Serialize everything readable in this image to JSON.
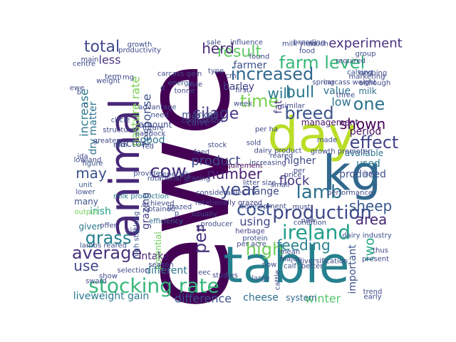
{
  "word_cloud": {
    "words": [
      {
        "text": "ewe",
        "color": "#440154"
      },
      {
        "text": "table",
        "color": "#26818e"
      },
      {
        "text": "kg",
        "color": "#31688e"
      },
      {
        "text": "day",
        "color": "#bade28"
      },
      {
        "text": "animal",
        "color": "#482878"
      },
      {
        "text": "stocking rate",
        "color": "#35b779"
      },
      {
        "text": "production",
        "color": "#3e4989"
      },
      {
        "text": "ireland",
        "color": "#1f9e89"
      },
      {
        "text": "farm level",
        "color": "#35b779"
      },
      {
        "text": "lamb",
        "color": "#2d708e"
      },
      {
        "text": "breed",
        "color": "#3b528b"
      },
      {
        "text": "increased",
        "color": "#31688e"
      },
      {
        "text": "bull",
        "color": "#2a788e"
      },
      {
        "text": "grass",
        "color": "#26828e"
      },
      {
        "text": "high",
        "color": "#6ece58"
      },
      {
        "text": "average",
        "color": "#46327e"
      },
      {
        "text": "cow",
        "color": "#472d7b"
      },
      {
        "text": "one",
        "color": "#2c728e"
      },
      {
        "text": "effect",
        "color": "#414487"
      },
      {
        "text": "year",
        "color": "#3e4a89"
      },
      {
        "text": "cost",
        "color": "#3b528b"
      },
      {
        "text": "result",
        "color": "#5ec962"
      },
      {
        "text": "pasture rate",
        "color": "#7ad151"
      },
      {
        "text": "response",
        "color": "#3b528b"
      },
      {
        "text": "silage",
        "color": "#443983"
      },
      {
        "text": "number",
        "color": "#482173"
      },
      {
        "text": "time",
        "color": "#7ad151"
      },
      {
        "text": "will",
        "color": "#2a788e"
      },
      {
        "text": "total",
        "color": "#3f4788"
      },
      {
        "text": "increase",
        "color": "#2a788e"
      },
      {
        "text": "experiment",
        "color": "#472f7d"
      },
      {
        "text": "herd",
        "color": "#472c7a"
      },
      {
        "text": "shown",
        "color": "#440154"
      },
      {
        "text": "flock",
        "color": "#46337e"
      },
      {
        "text": "grazing",
        "color": "#433e85"
      },
      {
        "text": "sheep",
        "color": "#38588c"
      },
      {
        "text": "product",
        "color": "#3e4989"
      },
      {
        "text": "area",
        "color": "#482677"
      },
      {
        "text": "using",
        "color": "#404688"
      },
      {
        "text": "feeding",
        "color": "#27808e"
      },
      {
        "text": "use",
        "color": "#3f4788"
      },
      {
        "text": "may",
        "color": "#3b528b"
      },
      {
        "text": "two",
        "color": "#22a785"
      },
      {
        "text": "difference",
        "color": "#3b528b"
      },
      {
        "text": "cheese",
        "color": "#2c728e"
      },
      {
        "text": "winter",
        "color": "#54c568"
      },
      {
        "text": "liveweight gain",
        "color": "#2a788e"
      },
      {
        "text": "different",
        "color": "#2c728e"
      },
      {
        "text": "intake",
        "color": "#482173"
      },
      {
        "text": "per",
        "color": "#46337e"
      },
      {
        "text": "n",
        "color": "#482878"
      },
      {
        "text": "fat",
        "color": "#46327e"
      },
      {
        "text": "low",
        "color": "#2c728e"
      },
      {
        "text": "value",
        "color": "#2d708e"
      },
      {
        "text": "milk",
        "color": "#2d708e"
      },
      {
        "text": "barley",
        "color": "#424086"
      },
      {
        "text": "farmer",
        "color": "#3b528b"
      },
      {
        "text": "period",
        "color": "#470e61"
      },
      {
        "text": "available",
        "color": "#2c728e"
      },
      {
        "text": "used",
        "color": "#2a788e"
      },
      {
        "text": "produced",
        "color": "#3b528b"
      },
      {
        "text": "higher",
        "color": "#3e4989"
      },
      {
        "text": "change",
        "color": "#3f4788"
      },
      {
        "text": "market",
        "color": "#3e4c8a"
      },
      {
        "text": "calve",
        "color": "#424086"
      },
      {
        "text": "good",
        "color": "#2c728e"
      },
      {
        "text": "factor",
        "color": "#3e4989"
      },
      {
        "text": "less",
        "color": "#46337e"
      },
      {
        "text": "amount",
        "color": "#3e4989"
      },
      {
        "text": "irish",
        "color": "#1fa188"
      },
      {
        "text": "dry matter",
        "color": "#2c728e"
      },
      {
        "text": "management",
        "color": "#471365"
      },
      {
        "text": "requirement",
        "color": "#440154"
      },
      {
        "text": "many",
        "color": "#3b528b"
      },
      {
        "text": "given",
        "color": "#2a788e"
      },
      {
        "text": "unit",
        "color": "#38588c"
      },
      {
        "text": "lower",
        "color": "#3e4c8a"
      },
      {
        "text": "efficiency",
        "color": "#31688e"
      },
      {
        "text": "milk production",
        "color": "#2a788e"
      },
      {
        "text": "lambs reared",
        "color": "#3b528b"
      },
      {
        "text": "high stocking",
        "color": "#3b528b"
      },
      {
        "text": "potential",
        "color": "#6ece58"
      },
      {
        "text": "herbage",
        "color": "#424086"
      },
      {
        "text": "system",
        "color": "#31688e"
      },
      {
        "text": "important",
        "color": "#3b528b"
      },
      {
        "text": "thus",
        "color": "#3e4989"
      },
      {
        "text": "protein",
        "color": "#3b528b"
      },
      {
        "text": "rotationally grazed",
        "color": "#424086"
      },
      {
        "text": "now",
        "color": "#3e4989"
      },
      {
        "text": "ram",
        "color": "#3b528b"
      },
      {
        "text": "figure",
        "color": "#3b528b"
      },
      {
        "text": "need",
        "color": "#3e4989"
      },
      {
        "text": "carcass gain",
        "color": "#3e4989"
      },
      {
        "text": "energy",
        "color": "#3b528b"
      },
      {
        "text": "type",
        "color": "#3b528b"
      },
      {
        "text": "lambing",
        "color": "#3e4989"
      },
      {
        "text": "calving",
        "color": "#3b528b"
      },
      {
        "text": "dairy industry",
        "color": "#3b528b"
      },
      {
        "text": "new",
        "color": "#3e4989"
      },
      {
        "text": "similar",
        "color": "#3e4989"
      },
      {
        "text": "small",
        "color": "#3e4989"
      },
      {
        "text": "must",
        "color": "#3e4989"
      },
      {
        "text": "mean",
        "color": "#3e4989"
      },
      {
        "text": "calf",
        "color": "#3b528b"
      },
      {
        "text": "large",
        "color": "#3b528b"
      },
      {
        "text": "studies",
        "color": "#3e4989"
      },
      {
        "text": "early",
        "color": "#3e4989"
      },
      {
        "text": "trend",
        "color": "#3e4989"
      },
      {
        "text": "advantage",
        "color": "#3e4989"
      },
      {
        "text": "comparison",
        "color": "#3b528b"
      },
      {
        "text": "future",
        "color": "#3e4989"
      },
      {
        "text": "paddock",
        "color": "#3e4989"
      },
      {
        "text": "fed",
        "color": "#3e4989"
      },
      {
        "text": "generally",
        "color": "#3b528b"
      },
      {
        "text": "provide",
        "color": "#3e4989"
      },
      {
        "text": "output",
        "color": "#6ece58"
      },
      {
        "text": "season",
        "color": "#3e4989"
      },
      {
        "text": "selection",
        "color": "#3e4989"
      },
      {
        "text": "growth",
        "color": "#3e4989"
      },
      {
        "text": "productivity",
        "color": "#3e4989"
      },
      {
        "text": "main",
        "color": "#3e4989"
      },
      {
        "text": "centre",
        "color": "#3e4989"
      },
      {
        "text": "weight",
        "color": "#3e4989"
      },
      {
        "text": "term",
        "color": "#3e4989"
      },
      {
        "text": "structure",
        "color": "#3e4989"
      },
      {
        "text": "greater",
        "color": "#3e4989"
      },
      {
        "text": "lowland",
        "color": "#3e4989"
      },
      {
        "text": "tonne",
        "color": "#3e4989"
      },
      {
        "text": "week",
        "color": "#3e4989"
      },
      {
        "text": "first",
        "color": "#3e4989"
      },
      {
        "text": "food",
        "color": "#3e4989"
      },
      {
        "text": "milk yield",
        "color": "#3e4989"
      },
      {
        "text": "breeding",
        "color": "#3e4989"
      },
      {
        "text": "group",
        "color": "#3e4989"
      },
      {
        "text": "required",
        "color": "#3e4989"
      },
      {
        "text": "carcass weight",
        "color": "#3e4989"
      },
      {
        "text": "spring",
        "color": "#3e4989"
      },
      {
        "text": "although",
        "color": "#3e4989"
      },
      {
        "text": "marketing",
        "color": "#3e4989"
      },
      {
        "text": "per ha",
        "color": "#3e4989"
      },
      {
        "text": "litter size",
        "color": "#3e4989"
      },
      {
        "text": "considerable",
        "color": "#3e4989"
      },
      {
        "text": "achieved",
        "color": "#3e4989"
      },
      {
        "text": "obtained",
        "color": "#3e4989"
      },
      {
        "text": "price",
        "color": "#3e4989"
      },
      {
        "text": "condition",
        "color": "#3e4989"
      },
      {
        "text": "performance",
        "color": "#3e4989"
      },
      {
        "text": "development",
        "color": "#3e4989"
      },
      {
        "text": "major",
        "color": "#3e4989"
      },
      {
        "text": "diversification",
        "color": "#3e4989"
      },
      {
        "text": "present",
        "color": "#3e4989"
      },
      {
        "text": "better",
        "color": "#3e4989"
      },
      {
        "text": "cattle",
        "color": "#3e4989"
      },
      {
        "text": "increasing",
        "color": "#3e4989"
      },
      {
        "text": "dairy product",
        "color": "#3e4989"
      },
      {
        "text": "made",
        "color": "#3e4989"
      },
      {
        "text": "growth promoter",
        "color": "#3e4989"
      },
      {
        "text": "three",
        "color": "#3e4989"
      },
      {
        "text": "much",
        "color": "#3e4989"
      },
      {
        "text": "sward",
        "color": "#3e4989"
      },
      {
        "text": "ida",
        "color": "#3e4989"
      },
      {
        "text": "sold",
        "color": "#3e4989"
      },
      {
        "text": "producer",
        "color": "#3e4989"
      },
      {
        "text": "rotational grazing",
        "color": "#3e4989"
      },
      {
        "text": "usually",
        "color": "#3e4989"
      },
      {
        "text": "show",
        "color": "#3e4989"
      },
      {
        "text": "offer",
        "color": "#3e4989"
      },
      {
        "text": "size",
        "color": "#3e4989"
      },
      {
        "text": "sale",
        "color": "#3e4989"
      },
      {
        "text": "influence",
        "color": "#3e4989"
      },
      {
        "text": "found",
        "color": "#3e4989"
      },
      {
        "text": "ha",
        "color": "#3e4989"
      },
      {
        "text": "eec",
        "color": "#3e4989"
      },
      {
        "text": "rate",
        "color": "#3e4989"
      },
      {
        "text": "circle",
        "color": "#3e4989"
      },
      {
        "text": "mg",
        "color": "#3e4989"
      },
      {
        "text": "per acre",
        "color": "#3e4989"
      },
      {
        "text": "grazed",
        "color": "#3e4989"
      },
      {
        "text": "reared",
        "color": "#3e4989"
      },
      {
        "text": "per",
        "color": "#3e4989"
      },
      {
        "text": "stock",
        "color": "#3e4989"
      },
      {
        "text": "feed",
        "color": "#3e4989"
      },
      {
        "text": "d",
        "color": "#3e4989"
      },
      {
        "text": "cm",
        "color": "#3e4989"
      },
      {
        "text": "b",
        "color": "#3e4989"
      },
      {
        "text": "c",
        "color": "#3e4989"
      },
      {
        "text": "ewe",
        "color": "#3e4989"
      },
      {
        "text": "p",
        "color": "#3e4989"
      }
    ]
  }
}
